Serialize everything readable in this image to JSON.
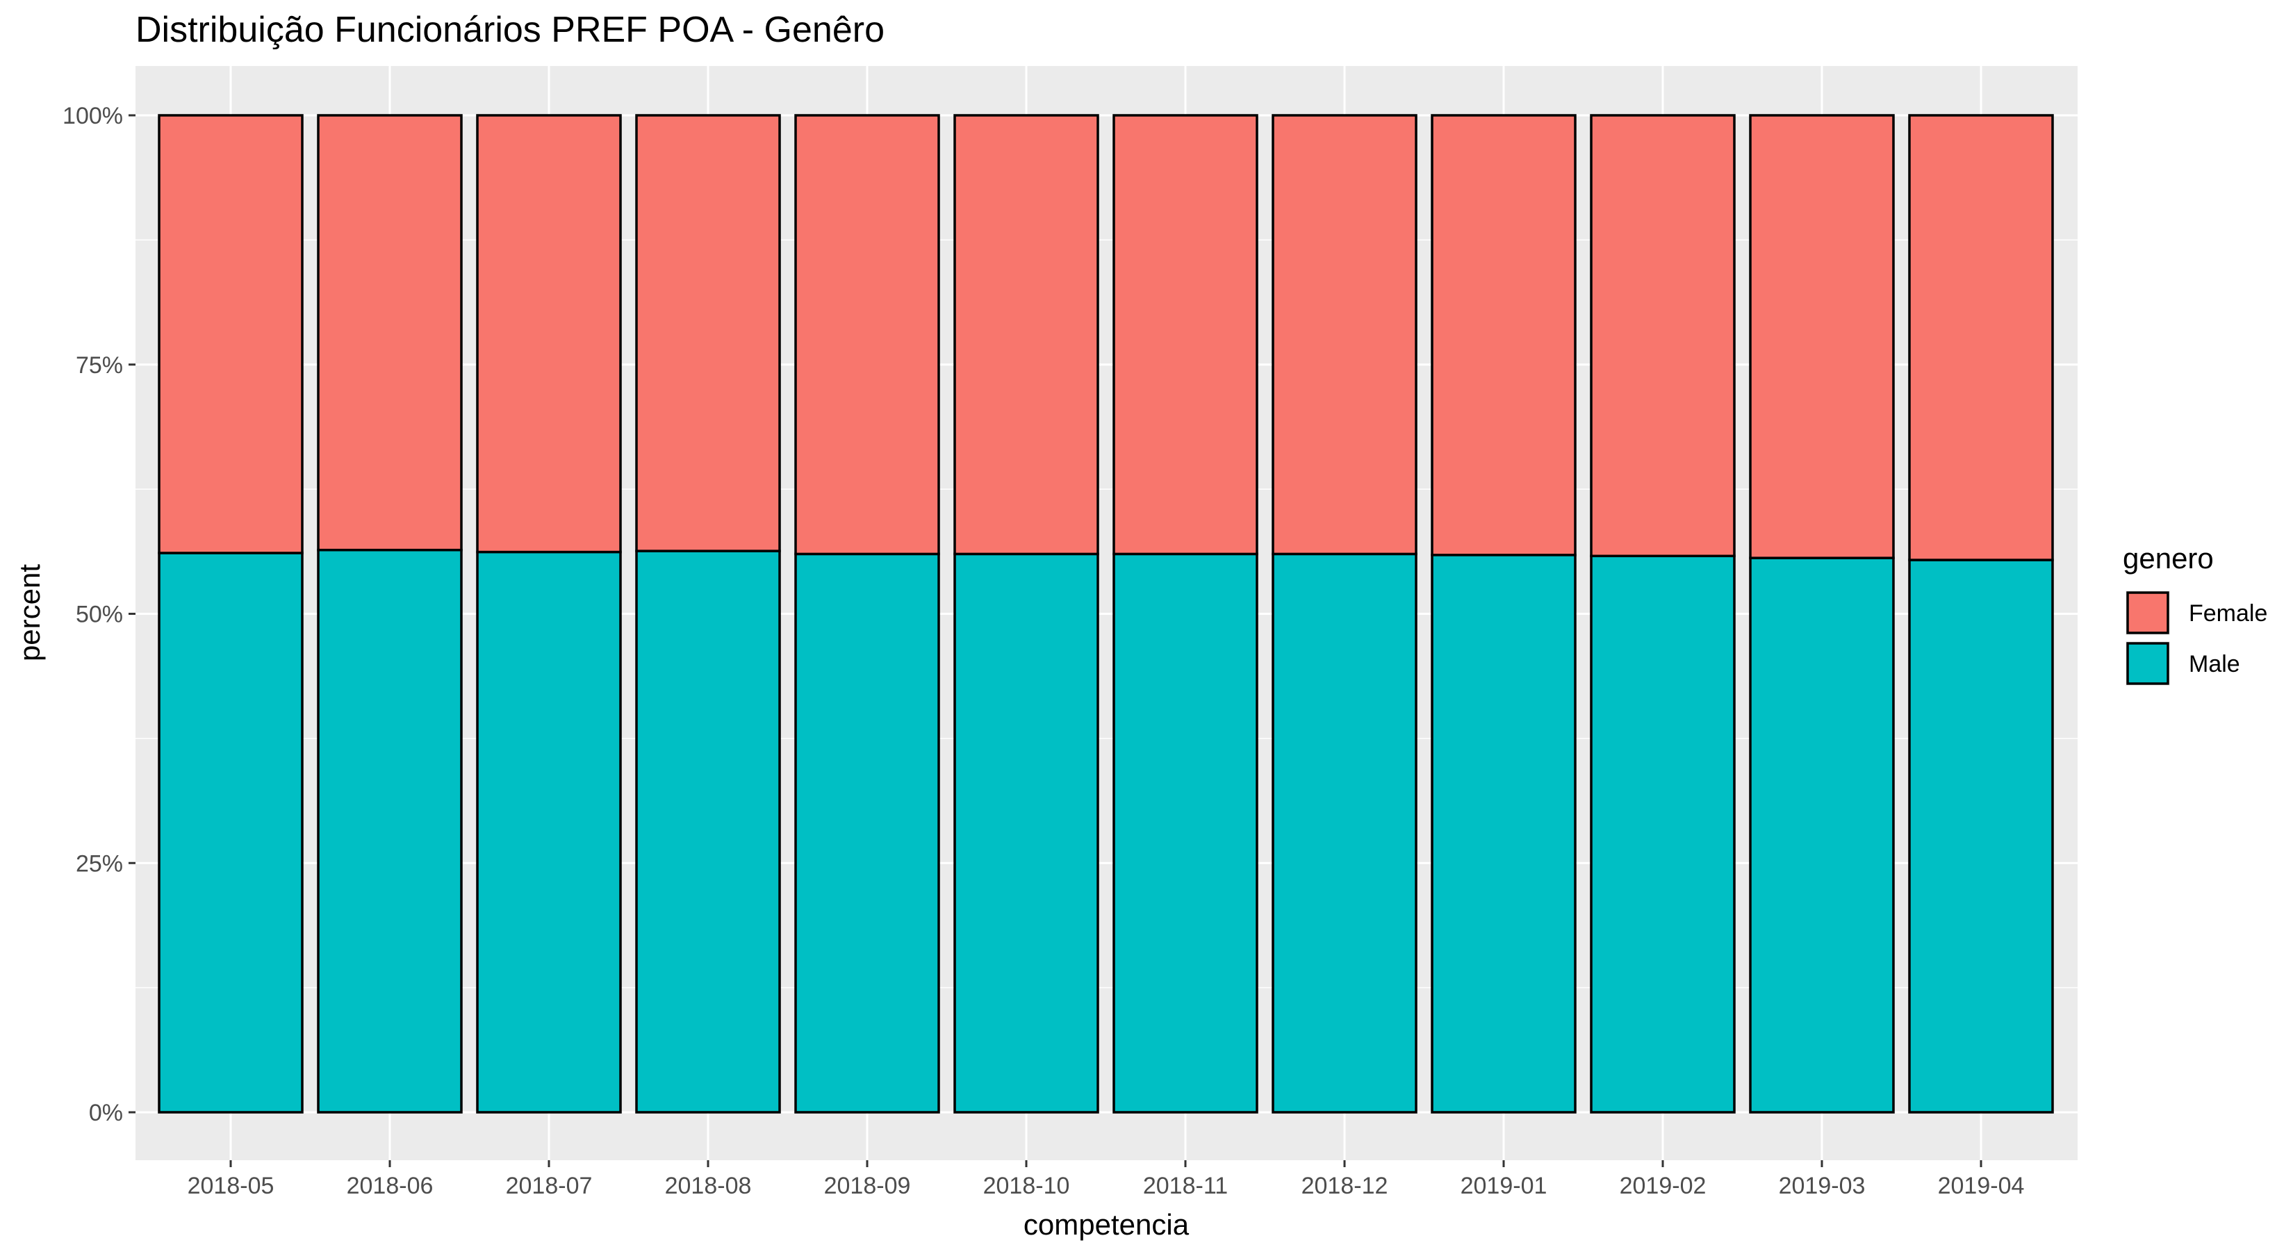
{
  "chart_data": {
    "type": "bar",
    "stacked": true,
    "percent": true,
    "title": "Distribuição Funcionários PREF POA - Genêro",
    "xlabel": "competencia",
    "ylabel": "percent",
    "ylim": [
      0,
      100
    ],
    "y_ticks": [
      0,
      25,
      50,
      75,
      100
    ],
    "y_tick_labels": [
      "0%",
      "25%",
      "50%",
      "75%",
      "100%"
    ],
    "categories": [
      "2018-05",
      "2018-06",
      "2018-07",
      "2018-08",
      "2018-09",
      "2018-10",
      "2018-11",
      "2018-12",
      "2019-01",
      "2019-02",
      "2019-03",
      "2019-04"
    ],
    "series": [
      {
        "name": "Male",
        "color": "#00BFC4",
        "values": [
          56.1,
          56.4,
          56.2,
          56.3,
          56.0,
          56.0,
          56.0,
          56.0,
          55.9,
          55.8,
          55.6,
          55.4
        ]
      },
      {
        "name": "Female",
        "color": "#F8766D",
        "values": [
          43.9,
          43.6,
          43.8,
          43.7,
          44.0,
          44.0,
          44.0,
          44.0,
          44.1,
          44.2,
          44.4,
          44.6
        ]
      }
    ],
    "legend": {
      "title": "genero",
      "placement": "right",
      "entries": [
        {
          "label": "Female",
          "color": "#F8766D"
        },
        {
          "label": "Male",
          "color": "#00BFC4"
        }
      ]
    },
    "grid": true,
    "panel_background": "#EBEBEB",
    "bar_outline": "#000000"
  }
}
